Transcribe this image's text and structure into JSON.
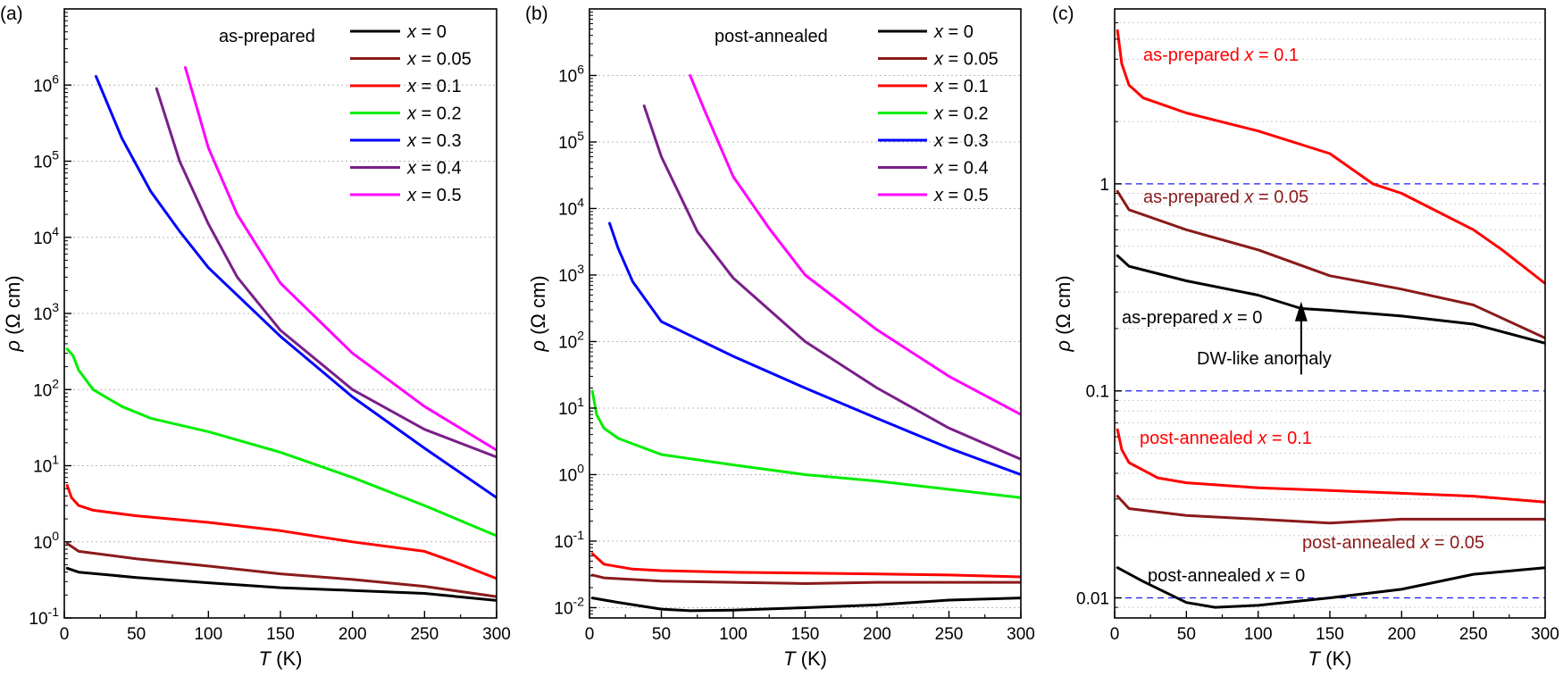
{
  "chart_data": [
    {
      "panel": "(a)",
      "type": "line",
      "yscale": "log",
      "xlabel": "T (K)",
      "ylabel": "ρ (Ω cm)",
      "xlim": [
        0,
        300
      ],
      "ylim": [
        0.1,
        10000000
      ],
      "xticks": [
        "0",
        "50",
        "100",
        "150",
        "200",
        "250",
        "300"
      ],
      "yticks": [
        {
          "base": "10",
          "exp": "-1",
          "v": 0.1
        },
        {
          "base": "10",
          "exp": "0",
          "v": 1
        },
        {
          "base": "10",
          "exp": "1",
          "v": 10
        },
        {
          "base": "10",
          "exp": "2",
          "v": 100
        },
        {
          "base": "10",
          "exp": "3",
          "v": 1000
        },
        {
          "base": "10",
          "exp": "4",
          "v": 10000
        },
        {
          "base": "10",
          "exp": "5",
          "v": 100000
        },
        {
          "base": "10",
          "exp": "6",
          "v": 1000000
        }
      ],
      "legend_title": "as-prepared",
      "series": [
        {
          "name": "x = 0",
          "color": "#000000",
          "x": [
            2,
            10,
            50,
            100,
            150,
            200,
            250,
            300
          ],
          "y": [
            0.45,
            0.4,
            0.34,
            0.29,
            0.25,
            0.23,
            0.21,
            0.17
          ]
        },
        {
          "name": "x = 0.05",
          "color": "#8b1a1a",
          "x": [
            2,
            10,
            50,
            100,
            150,
            200,
            250,
            300
          ],
          "y": [
            0.95,
            0.75,
            0.6,
            0.48,
            0.38,
            0.32,
            0.26,
            0.19
          ]
        },
        {
          "name": "x = 0.1",
          "color": "#ff0000",
          "x": [
            2,
            5,
            10,
            20,
            50,
            100,
            150,
            200,
            250,
            270,
            300
          ],
          "y": [
            5.5,
            3.8,
            3.0,
            2.6,
            2.2,
            1.8,
            1.4,
            1.0,
            0.75,
            0.55,
            0.33
          ]
        },
        {
          "name": "x = 0.2",
          "color": "#00ee00",
          "x": [
            2,
            6,
            10,
            20,
            40,
            60,
            100,
            150,
            200,
            250,
            300
          ],
          "y": [
            340,
            280,
            180,
            100,
            60,
            42,
            28,
            15,
            7,
            3,
            1.2
          ]
        },
        {
          "name": "x = 0.3",
          "color": "#0000ff",
          "x": [
            22,
            40,
            60,
            80,
            100,
            150,
            200,
            250,
            300
          ],
          "y": [
            1300000,
            200000,
            40000,
            12000,
            4000,
            500,
            80,
            17,
            3.8
          ]
        },
        {
          "name": "x = 0.4",
          "color": "#7a1f8a",
          "x": [
            64,
            80,
            100,
            120,
            150,
            200,
            250,
            300
          ],
          "y": [
            900000,
            100000,
            15000,
            3000,
            600,
            100,
            30,
            13
          ]
        },
        {
          "name": "x = 0.5",
          "color": "#ff00ff",
          "x": [
            84,
            100,
            120,
            150,
            200,
            250,
            300
          ],
          "y": [
            1700000,
            150000,
            20000,
            2500,
            300,
            60,
            16
          ]
        }
      ]
    },
    {
      "panel": "(b)",
      "type": "line",
      "yscale": "log",
      "xlabel": "T (K)",
      "ylabel": "ρ (Ω cm)",
      "xlim": [
        0,
        300
      ],
      "ylim": [
        0.007,
        10000000
      ],
      "xticks": [
        "0",
        "50",
        "100",
        "150",
        "200",
        "250",
        "300"
      ],
      "yticks": [
        {
          "base": "10",
          "exp": "-2",
          "v": 0.01
        },
        {
          "base": "10",
          "exp": "-1",
          "v": 0.1
        },
        {
          "base": "10",
          "exp": "0",
          "v": 1
        },
        {
          "base": "10",
          "exp": "1",
          "v": 10
        },
        {
          "base": "10",
          "exp": "2",
          "v": 100
        },
        {
          "base": "10",
          "exp": "3",
          "v": 1000
        },
        {
          "base": "10",
          "exp": "4",
          "v": 10000
        },
        {
          "base": "10",
          "exp": "5",
          "v": 100000
        },
        {
          "base": "10",
          "exp": "6",
          "v": 1000000
        }
      ],
      "legend_title": "post-annealed",
      "series": [
        {
          "name": "x = 0",
          "color": "#000000",
          "x": [
            2,
            20,
            50,
            70,
            100,
            150,
            200,
            250,
            300
          ],
          "y": [
            0.014,
            0.012,
            0.0095,
            0.009,
            0.0092,
            0.01,
            0.011,
            0.013,
            0.014
          ]
        },
        {
          "name": "x = 0.05",
          "color": "#8b1a1a",
          "x": [
            2,
            10,
            50,
            100,
            150,
            200,
            250,
            300
          ],
          "y": [
            0.031,
            0.028,
            0.025,
            0.024,
            0.023,
            0.024,
            0.024,
            0.024
          ]
        },
        {
          "name": "x = 0.1",
          "color": "#ff0000",
          "x": [
            2,
            10,
            30,
            50,
            100,
            150,
            200,
            250,
            300
          ],
          "y": [
            0.065,
            0.045,
            0.038,
            0.036,
            0.034,
            0.033,
            0.032,
            0.031,
            0.029
          ]
        },
        {
          "name": "x = 0.2",
          "color": "#00ee00",
          "x": [
            2,
            5,
            10,
            20,
            50,
            100,
            150,
            200,
            250,
            300
          ],
          "y": [
            18,
            8,
            5,
            3.5,
            2,
            1.4,
            1.0,
            0.8,
            0.6,
            0.45
          ]
        },
        {
          "name": "x = 0.3",
          "color": "#0000ff",
          "x": [
            14,
            20,
            30,
            50,
            100,
            150,
            200,
            250,
            300
          ],
          "y": [
            6000,
            2500,
            800,
            200,
            60,
            20,
            7,
            2.5,
            1.0
          ]
        },
        {
          "name": "x = 0.4",
          "color": "#7a1f8a",
          "x": [
            38,
            50,
            75,
            100,
            150,
            200,
            250,
            300
          ],
          "y": [
            350000,
            60000,
            4500,
            900,
            100,
            20,
            5,
            1.7
          ]
        },
        {
          "name": "x = 0.5",
          "color": "#ff00ff",
          "x": [
            70,
            80,
            100,
            125,
            150,
            200,
            250,
            300
          ],
          "y": [
            1000000,
            300000,
            30000,
            5000,
            1000,
            150,
            30,
            8
          ]
        }
      ]
    },
    {
      "panel": "(c)",
      "type": "line",
      "yscale": "log",
      "xlabel": "T (K)",
      "ylabel": "ρ (Ω cm)",
      "xlim": [
        0,
        300
      ],
      "ylim": [
        0.008,
        7
      ],
      "xticks": [
        "0",
        "50",
        "100",
        "150",
        "200",
        "250",
        "300"
      ],
      "yticks": [
        {
          "base": "0.01",
          "exp": "",
          "v": 0.01
        },
        {
          "base": "0.1",
          "exp": "",
          "v": 0.1
        },
        {
          "base": "1",
          "exp": "",
          "v": 1
        }
      ],
      "reference_lines": [
        0.01,
        0.1,
        1
      ],
      "series": [
        {
          "name": "as-prepared x = 0.1",
          "color": "#ff0000",
          "x": [
            2,
            5,
            10,
            20,
            50,
            100,
            150,
            180,
            200,
            250,
            270,
            300
          ],
          "y": [
            5.5,
            3.8,
            3.0,
            2.6,
            2.2,
            1.8,
            1.4,
            1.0,
            0.9,
            0.6,
            0.48,
            0.33
          ]
        },
        {
          "name": "as-prepared x = 0.05",
          "color": "#8b1a1a",
          "x": [
            2,
            10,
            50,
            100,
            150,
            200,
            250,
            300
          ],
          "y": [
            0.92,
            0.75,
            0.6,
            0.48,
            0.36,
            0.31,
            0.26,
            0.18
          ]
        },
        {
          "name": "as-prepared x = 0",
          "color": "#000000",
          "x": [
            2,
            10,
            50,
            100,
            130,
            150,
            200,
            250,
            300
          ],
          "y": [
            0.45,
            0.4,
            0.34,
            0.29,
            0.25,
            0.245,
            0.23,
            0.21,
            0.17
          ]
        },
        {
          "name": "post-annealed x = 0.1",
          "color": "#ff0000",
          "x": [
            2,
            5,
            10,
            30,
            50,
            100,
            150,
            200,
            250,
            300
          ],
          "y": [
            0.065,
            0.052,
            0.045,
            0.038,
            0.036,
            0.034,
            0.033,
            0.032,
            0.031,
            0.029
          ]
        },
        {
          "name": "post-annealed x = 0.05",
          "color": "#8b1a1a",
          "x": [
            2,
            10,
            50,
            100,
            150,
            200,
            250,
            300
          ],
          "y": [
            0.031,
            0.027,
            0.025,
            0.024,
            0.023,
            0.024,
            0.024,
            0.024
          ]
        },
        {
          "name": "post-annealed x = 0",
          "color": "#000000",
          "x": [
            2,
            20,
            50,
            70,
            100,
            150,
            200,
            250,
            300
          ],
          "y": [
            0.014,
            0.012,
            0.0095,
            0.009,
            0.0092,
            0.01,
            0.011,
            0.013,
            0.014
          ]
        }
      ],
      "annotations": [
        {
          "prefix": "as-prepared ",
          "var": "x",
          "suffix": " = 0.1",
          "color": "#ff0000"
        },
        {
          "prefix": "as-prepared ",
          "var": "x",
          "suffix": " = 0.05",
          "color": "#8b1a1a"
        },
        {
          "prefix": "as-prepared ",
          "var": "x",
          "suffix": " = 0",
          "color": "#000000"
        },
        {
          "prefix": "DW-like anomaly",
          "var": "",
          "suffix": "",
          "color": "#000000"
        },
        {
          "prefix": "post-annealed ",
          "var": "x",
          "suffix": " = 0.1",
          "color": "#ff0000"
        },
        {
          "prefix": "post-annealed ",
          "var": "x",
          "suffix": " = 0.05",
          "color": "#8b1a1a"
        },
        {
          "prefix": "post-annealed ",
          "var": "x",
          "suffix": " = 0",
          "color": "#000000"
        }
      ],
      "arrow": {
        "x": 130,
        "y_from": 0.12,
        "y_to": 0.27
      }
    }
  ]
}
